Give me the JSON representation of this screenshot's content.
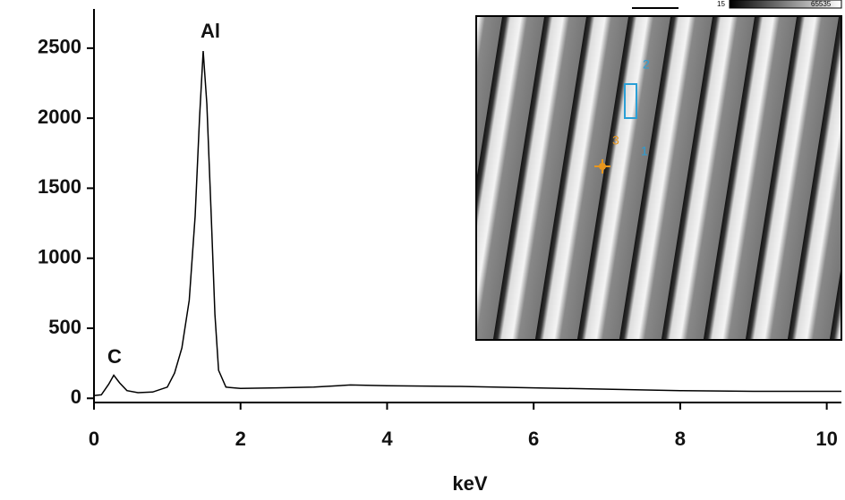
{
  "chart_data": {
    "type": "line",
    "x_label": "keV",
    "annotations": [
      "Al",
      "C"
    ],
    "x": [
      0,
      0.1,
      0.2,
      0.27,
      0.35,
      0.45,
      0.6,
      0.8,
      1.0,
      1.1,
      1.2,
      1.3,
      1.38,
      1.44,
      1.49,
      1.54,
      1.6,
      1.65,
      1.7,
      1.8,
      2.0,
      2.5,
      3.0,
      3.5,
      4.0,
      5.0,
      6.0,
      7.0,
      8.0,
      9.0,
      10.2
    ],
    "values": [
      20,
      25,
      100,
      165,
      110,
      55,
      40,
      45,
      80,
      180,
      360,
      700,
      1300,
      2000,
      2480,
      2100,
      1300,
      600,
      200,
      80,
      70,
      75,
      80,
      95,
      90,
      85,
      75,
      65,
      55,
      50,
      50
    ],
    "color": "#000000",
    "xlim": [
      0,
      10.2
    ],
    "xticks": [
      0,
      2,
      4,
      6,
      8,
      10
    ],
    "ylim": [
      -30,
      2780
    ],
    "yticks": [
      0,
      500,
      1000,
      1500,
      2000,
      2500
    ]
  },
  "inset": {
    "region_labels": [
      "1",
      "2",
      "3"
    ],
    "colorbar_labels": [
      "15",
      "65535"
    ]
  }
}
